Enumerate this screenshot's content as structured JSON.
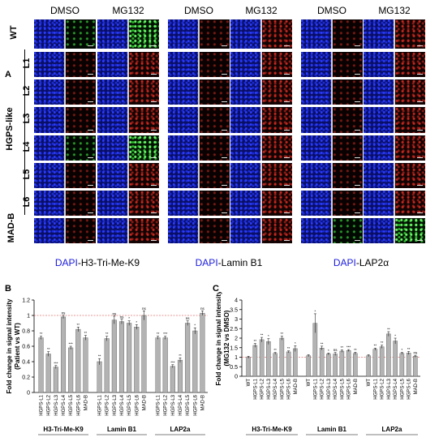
{
  "panel_labels": {
    "a": "A",
    "b": "B",
    "c": "C"
  },
  "micrograph": {
    "column_headers": [
      "DMSO",
      "MG132",
      "DMSO",
      "MG132",
      "DMSO",
      "MG132"
    ],
    "row_labels": [
      "WT",
      "L1",
      "L2",
      "L3",
      "L4",
      "L5",
      "L6",
      "MAD-B"
    ],
    "group_label": "HGPS-like",
    "captions": [
      {
        "dapi": "DAPI",
        "rest": "-H3-Tri-Me-K9"
      },
      {
        "dapi": "DAPI",
        "rest": "-Lamin B1"
      },
      {
        "dapi": "DAPI",
        "rest": "-LAP2α"
      }
    ],
    "colors": {
      "dapi": "#1a1adc",
      "stain_red": "#c8281e",
      "stain_green": "#4cdc4c"
    }
  },
  "chart_data": [
    {
      "type": "bar",
      "panel": "B",
      "ylabel": "Fold change in signal intensity\n(Patient vs WT)",
      "ylim": [
        0,
        1.2
      ],
      "yticks": [
        "0",
        "0.2",
        "0.4",
        "0.6",
        "0.8",
        "1",
        "1.2"
      ],
      "reference_line": 1.0,
      "reference_color": "#d03030",
      "groups": [
        {
          "name": "H3-Tri-Me-K9",
          "categories": [
            "HGPS-L1",
            "HGPS-L2",
            "HGPS-L3",
            "HGPS-L4",
            "HGPS-L5",
            "HGPS-L6",
            "MAD-B"
          ],
          "values": [
            0.71,
            0.5,
            0.33,
            0.98,
            0.58,
            0.82,
            0.71
          ],
          "errors": [
            0.02,
            0.03,
            0.02,
            0.02,
            0.02,
            0.03,
            0.03
          ],
          "sig": [
            "**",
            "**",
            "***",
            "ns",
            "***",
            "**",
            "**"
          ]
        },
        {
          "name": "Lamin B1",
          "categories": [
            "HGPS-L1",
            "HGPS-L2",
            "HGPS-L3",
            "HGPS-L4",
            "HGPS-L5",
            "HGPS-L6",
            "MAD-B"
          ],
          "values": [
            0.4,
            0.7,
            0.94,
            0.92,
            0.9,
            0.85,
            1.0
          ],
          "errors": [
            0.04,
            0.03,
            0.05,
            0.03,
            0.03,
            0.03,
            0.06
          ],
          "sig": [
            "**",
            "**",
            "ns",
            "ns",
            "*",
            "*",
            "ns"
          ]
        },
        {
          "name": "LAP2a",
          "categories": [
            "HGPS-L1",
            "HGPS-L2",
            "HGPS-L3",
            "HGPS-L4",
            "HGPS-L5",
            "HGPS-L6",
            "MAD-B"
          ],
          "values": [
            0.71,
            0.71,
            0.34,
            0.42,
            0.9,
            0.8,
            1.03
          ],
          "errors": [
            0.02,
            0.02,
            0.02,
            0.03,
            0.03,
            0.04,
            0.03
          ],
          "sig": [
            "**",
            "***",
            "***",
            "**",
            "ns",
            "*",
            "ns"
          ]
        }
      ]
    },
    {
      "type": "bar",
      "panel": "C",
      "ylabel": "Fold change in signal intensity\n(MG132 vs DMSO)",
      "ylim": [
        0,
        4
      ],
      "yticks": [
        "0",
        "0.5",
        "1",
        "1.5",
        "2",
        "2.5",
        "3",
        "3.5",
        "4"
      ],
      "reference_line": 1.0,
      "reference_color": "#d03030",
      "groups": [
        {
          "name": "H3-Tri-Me-K9",
          "categories": [
            "WT",
            "HGPS-L1",
            "HGPS-L2",
            "HGPS-L3",
            "HGPS-L4",
            "HGPS-L5",
            "HGPS-L6",
            "MAD-B"
          ],
          "values": [
            1.0,
            1.62,
            1.92,
            1.82,
            1.2,
            2.0,
            1.28,
            1.45
          ],
          "errors": [
            0.05,
            0.1,
            0.12,
            0.15,
            0.05,
            0.1,
            0.05,
            0.15
          ],
          "sig": [
            "",
            "**",
            "**",
            "*",
            "**",
            "**",
            "**",
            "*"
          ]
        },
        {
          "name": "Lamin B1",
          "categories": [
            "WT",
            "HGPS-L1",
            "HGPS-L2",
            "HGPS-L3",
            "HGPS-L4",
            "HGPS-L5",
            "HGPS-L6",
            "MAD-B"
          ],
          "values": [
            1.08,
            2.78,
            1.48,
            1.17,
            1.17,
            1.32,
            1.35,
            1.2
          ],
          "errors": [
            0.05,
            0.5,
            0.1,
            0.05,
            0.08,
            0.06,
            0.05,
            0.06
          ],
          "sig": [
            "",
            "*",
            "**",
            "*",
            "ns",
            "**",
            "***",
            "**"
          ]
        },
        {
          "name": "LAP2a",
          "categories": [
            "WT",
            "HGPS-L1",
            "HGPS-L2",
            "HGPS-L3",
            "HGPS-L4",
            "HGPS-L5",
            "HGPS-L6",
            "MAD-B"
          ],
          "values": [
            1.08,
            1.42,
            1.55,
            2.22,
            1.85,
            1.2,
            1.22,
            1.05
          ],
          "errors": [
            0.05,
            0.06,
            0.08,
            0.12,
            0.15,
            0.05,
            0.08,
            0.05
          ],
          "sig": [
            "",
            "**",
            "**",
            "**",
            "*",
            "*",
            "**",
            "ns"
          ]
        }
      ]
    }
  ]
}
